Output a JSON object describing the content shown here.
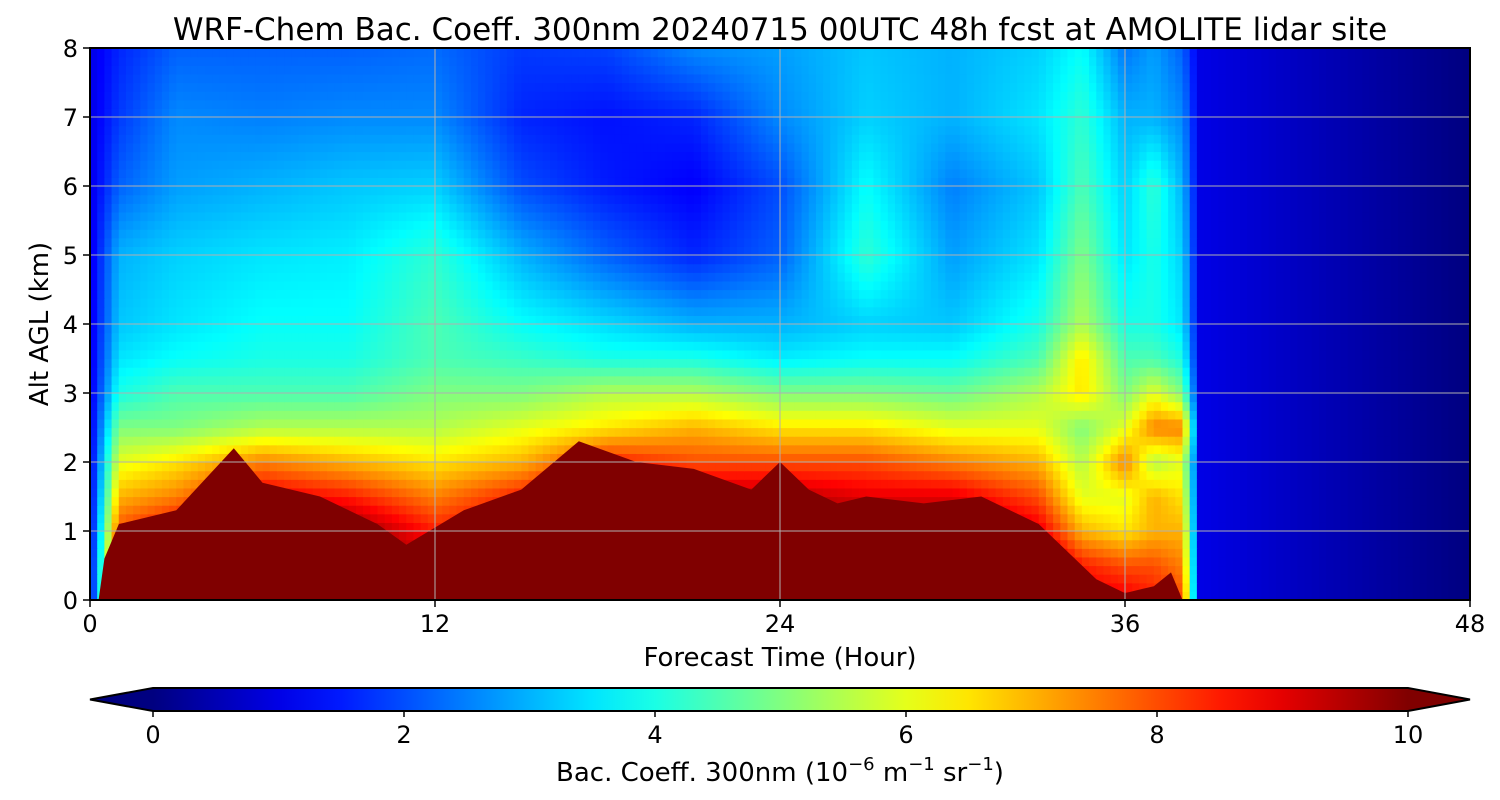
{
  "chart_data": {
    "type": "heatmap",
    "title": "WRF-Chem Bac. Coeff. 300nm  20240715 00UTC 48h fcst at AMOLITE lidar site",
    "xlabel": "Forecast Time (Hour)",
    "ylabel": "Alt AGL (km)",
    "xlim": [
      0,
      48
    ],
    "ylim": [
      0,
      8
    ],
    "xticks": [
      0,
      12,
      24,
      36,
      48
    ],
    "yticks": [
      0,
      1,
      2,
      3,
      4,
      5,
      6,
      7,
      8
    ],
    "grid": true,
    "colormap": "jet",
    "colorbar": {
      "orientation": "horizontal",
      "label": "Bac. Coeff. 300nm  (10",
      "label_exp1": "−6",
      "label_mid": " m",
      "label_exp2": "−1",
      "label_mid2": " sr",
      "label_exp3": "−1",
      "label_end": ")",
      "vmin": 0,
      "vmax": 10,
      "ticks": [
        0,
        2,
        4,
        6,
        8,
        10
      ],
      "extend": "both"
    },
    "layer_top_km": {
      "hours": [
        0.3,
        0.5,
        1,
        3,
        5,
        6,
        8,
        10,
        11,
        13,
        15,
        17,
        19,
        21,
        23,
        24,
        25,
        26,
        27,
        29,
        31,
        33,
        35,
        36,
        37,
        37.6,
        38
      ],
      "values": [
        0.0,
        0.6,
        1.1,
        1.3,
        2.2,
        1.7,
        1.5,
        1.1,
        0.8,
        1.3,
        1.6,
        2.3,
        2.0,
        1.9,
        1.6,
        2.0,
        1.6,
        1.4,
        1.5,
        1.4,
        1.5,
        1.1,
        0.3,
        0.1,
        0.2,
        0.4,
        0.0
      ]
    },
    "field_grid": {
      "hours": [
        0,
        1,
        3,
        6,
        9,
        12,
        15,
        18,
        21,
        24,
        27,
        30,
        33,
        34.5,
        36,
        37,
        38,
        38.6,
        48
      ],
      "heights": [
        0,
        0.5,
        1,
        1.5,
        2,
        2.5,
        3,
        3.5,
        4,
        5,
        6,
        7,
        8
      ],
      "values": [
        [
          1,
          9,
          10,
          10,
          10,
          10,
          10,
          10,
          10,
          10,
          10,
          10,
          10,
          9,
          9,
          8.5,
          8,
          1,
          0
        ],
        [
          1,
          9,
          10,
          10,
          10,
          9.5,
          10,
          10,
          10,
          10,
          10,
          10,
          10,
          8.5,
          8,
          8,
          7.5,
          1,
          0
        ],
        [
          1,
          8,
          9,
          10,
          10,
          8.5,
          9,
          10,
          10,
          10,
          10,
          10,
          9,
          7,
          6.5,
          7,
          7,
          1,
          0
        ],
        [
          1,
          7,
          7.5,
          9,
          8.5,
          7.5,
          8.5,
          9.5,
          9.5,
          9.5,
          9,
          9,
          8,
          6,
          6,
          7,
          6.5,
          1,
          0
        ],
        [
          1,
          6,
          6.5,
          7.5,
          7,
          6.5,
          7,
          8.5,
          8,
          8,
          8,
          7.5,
          7,
          5.5,
          7.5,
          5.5,
          6,
          1,
          0
        ],
        [
          1,
          5,
          5,
          5.5,
          5.5,
          5.5,
          6,
          6.5,
          7,
          6.5,
          6.5,
          6,
          6,
          5,
          6,
          7.5,
          7.5,
          1,
          0
        ],
        [
          1,
          4,
          4.5,
          4.5,
          4.5,
          5,
          5,
          5.5,
          5.5,
          5,
          5,
          4.8,
          5.5,
          6.5,
          5,
          6,
          5,
          1,
          0
        ],
        [
          1,
          3.5,
          3.8,
          4,
          4,
          4.5,
          4.3,
          4,
          4,
          3.6,
          3.8,
          3.8,
          4.5,
          6.5,
          4.5,
          4.5,
          4,
          1,
          0
        ],
        [
          1,
          3.2,
          3.5,
          3.8,
          3.8,
          4.5,
          3.8,
          3.4,
          3,
          3,
          3.3,
          3.2,
          4,
          5.5,
          4,
          4,
          3.5,
          1,
          0
        ],
        [
          1,
          3,
          3.3,
          3.5,
          3.6,
          4.2,
          3,
          2.2,
          1.6,
          2.2,
          4.2,
          2.8,
          3.5,
          5,
          3.5,
          4,
          3.3,
          1,
          0
        ],
        [
          1,
          2.2,
          2.8,
          3,
          3.2,
          3.3,
          2,
          1.5,
          1.2,
          2,
          3.8,
          2.5,
          3.2,
          4.5,
          3.3,
          4.2,
          3,
          1,
          0
        ],
        [
          1,
          1.8,
          2.6,
          2.5,
          2.6,
          2.6,
          1.6,
          1.4,
          1.6,
          2.6,
          3.3,
          3,
          3.5,
          4.2,
          3,
          3,
          2.6,
          1,
          0
        ],
        [
          1,
          1.6,
          2.2,
          2.2,
          2.2,
          2.3,
          1.8,
          1.9,
          2.6,
          2.8,
          3.2,
          3,
          3.3,
          3.8,
          2.4,
          2.8,
          2.2,
          1,
          0
        ]
      ]
    }
  }
}
